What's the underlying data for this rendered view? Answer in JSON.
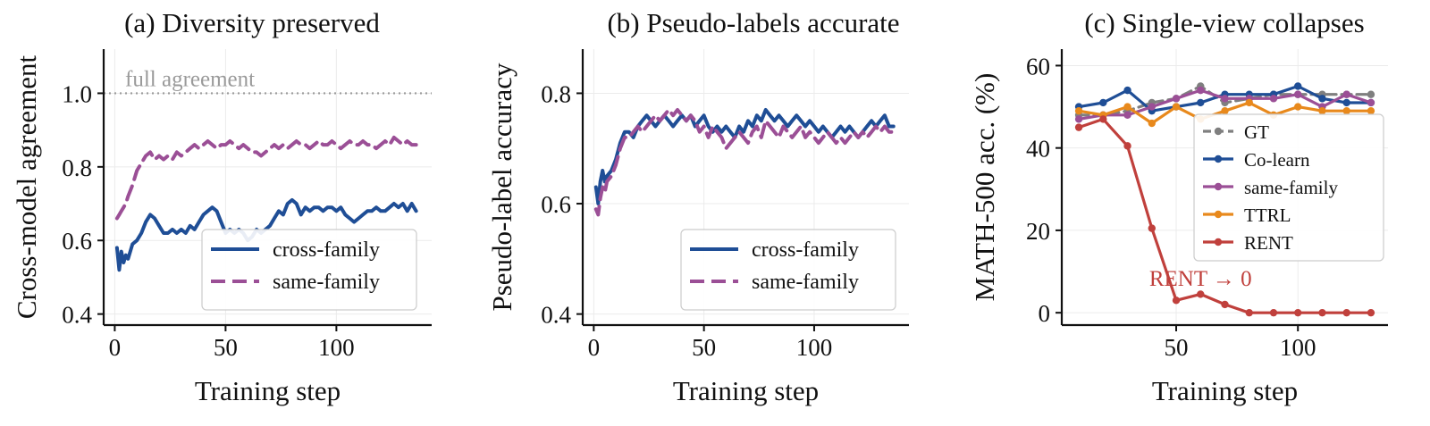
{
  "chart_data": [
    {
      "type": "line",
      "title": "(a) Diversity preserved",
      "xlabel": "Training step",
      "ylabel": "Cross-model agreement",
      "xlim": [
        -5,
        143
      ],
      "ylim": [
        0.37,
        1.12
      ],
      "xticks": [
        0,
        50,
        100
      ],
      "yticks": [
        0.4,
        0.6,
        0.8,
        1.0
      ],
      "ytick_labels": [
        "0.4",
        "0.6",
        "0.8",
        "1.0"
      ],
      "grid": true,
      "legend": "lower-right",
      "reference_line": {
        "y": 1.0,
        "label": "full agreement",
        "color": "#9a9a9a"
      },
      "series": [
        {
          "name": "cross-family",
          "color": "#1f4e96",
          "style": "solid",
          "x": [
            1,
            2,
            3,
            4,
            5,
            6,
            8,
            10,
            12,
            14,
            16,
            18,
            20,
            22,
            24,
            26,
            28,
            30,
            32,
            34,
            36,
            38,
            40,
            42,
            44,
            46,
            48,
            50,
            52,
            54,
            56,
            58,
            60,
            62,
            64,
            66,
            68,
            70,
            72,
            74,
            76,
            78,
            80,
            82,
            84,
            86,
            88,
            90,
            92,
            94,
            96,
            98,
            100,
            102,
            104,
            106,
            108,
            110,
            112,
            114,
            116,
            118,
            120,
            122,
            124,
            126,
            128,
            130,
            132,
            134,
            136
          ],
          "y": [
            0.58,
            0.52,
            0.57,
            0.54,
            0.56,
            0.55,
            0.59,
            0.6,
            0.62,
            0.65,
            0.67,
            0.66,
            0.64,
            0.62,
            0.62,
            0.63,
            0.62,
            0.63,
            0.62,
            0.64,
            0.63,
            0.65,
            0.67,
            0.68,
            0.69,
            0.68,
            0.65,
            0.62,
            0.63,
            0.62,
            0.63,
            0.62,
            0.6,
            0.61,
            0.63,
            0.62,
            0.63,
            0.64,
            0.66,
            0.68,
            0.67,
            0.7,
            0.71,
            0.7,
            0.67,
            0.69,
            0.68,
            0.69,
            0.69,
            0.68,
            0.69,
            0.69,
            0.68,
            0.69,
            0.67,
            0.66,
            0.65,
            0.66,
            0.67,
            0.68,
            0.68,
            0.69,
            0.68,
            0.68,
            0.69,
            0.7,
            0.69,
            0.7,
            0.68,
            0.7,
            0.68
          ]
        },
        {
          "name": "same-family",
          "color": "#9b4f96",
          "style": "dashed",
          "x": [
            1,
            2,
            3,
            4,
            5,
            6,
            8,
            10,
            12,
            14,
            16,
            18,
            20,
            22,
            24,
            26,
            28,
            30,
            32,
            34,
            36,
            38,
            40,
            42,
            44,
            46,
            48,
            50,
            52,
            54,
            56,
            58,
            60,
            62,
            64,
            66,
            68,
            70,
            72,
            74,
            76,
            78,
            80,
            82,
            84,
            86,
            88,
            90,
            92,
            94,
            96,
            98,
            100,
            102,
            104,
            106,
            108,
            110,
            112,
            114,
            116,
            118,
            120,
            122,
            124,
            126,
            128,
            130,
            132,
            134,
            136
          ],
          "y": [
            0.66,
            0.67,
            0.68,
            0.69,
            0.7,
            0.72,
            0.75,
            0.79,
            0.81,
            0.83,
            0.84,
            0.82,
            0.83,
            0.82,
            0.83,
            0.82,
            0.84,
            0.83,
            0.84,
            0.85,
            0.86,
            0.85,
            0.86,
            0.87,
            0.86,
            0.85,
            0.86,
            0.86,
            0.87,
            0.86,
            0.85,
            0.86,
            0.85,
            0.84,
            0.84,
            0.83,
            0.84,
            0.85,
            0.86,
            0.85,
            0.86,
            0.85,
            0.86,
            0.87,
            0.86,
            0.86,
            0.85,
            0.86,
            0.87,
            0.86,
            0.86,
            0.87,
            0.86,
            0.85,
            0.86,
            0.87,
            0.86,
            0.86,
            0.87,
            0.86,
            0.86,
            0.85,
            0.86,
            0.87,
            0.86,
            0.88,
            0.87,
            0.86,
            0.87,
            0.86,
            0.86
          ]
        }
      ]
    },
    {
      "type": "line",
      "title": "(b) Pseudo-labels accurate",
      "xlabel": "Training step",
      "ylabel": "Pseudo-label accuracy",
      "xlim": [
        -5,
        143
      ],
      "ylim": [
        0.38,
        0.88
      ],
      "xticks": [
        0,
        50,
        100
      ],
      "yticks": [
        0.4,
        0.6,
        0.8
      ],
      "ytick_labels": [
        "0.4",
        "0.6",
        "0.8"
      ],
      "grid": true,
      "legend": "lower-right",
      "series": [
        {
          "name": "cross-family",
          "color": "#1f4e96",
          "style": "solid",
          "x": [
            1,
            2,
            3,
            4,
            5,
            6,
            8,
            10,
            12,
            14,
            16,
            18,
            20,
            22,
            24,
            26,
            28,
            30,
            32,
            34,
            36,
            38,
            40,
            42,
            44,
            46,
            48,
            50,
            52,
            54,
            56,
            58,
            60,
            62,
            64,
            66,
            68,
            70,
            72,
            74,
            76,
            78,
            80,
            82,
            84,
            86,
            88,
            90,
            92,
            94,
            96,
            98,
            100,
            102,
            104,
            106,
            108,
            110,
            112,
            114,
            116,
            118,
            120,
            122,
            124,
            126,
            128,
            130,
            132,
            134,
            136
          ],
          "y": [
            0.63,
            0.6,
            0.64,
            0.66,
            0.64,
            0.65,
            0.66,
            0.68,
            0.71,
            0.73,
            0.73,
            0.72,
            0.74,
            0.75,
            0.76,
            0.75,
            0.74,
            0.75,
            0.76,
            0.75,
            0.74,
            0.75,
            0.76,
            0.75,
            0.76,
            0.74,
            0.75,
            0.76,
            0.74,
            0.73,
            0.74,
            0.73,
            0.74,
            0.73,
            0.72,
            0.74,
            0.73,
            0.75,
            0.74,
            0.76,
            0.75,
            0.77,
            0.76,
            0.75,
            0.76,
            0.75,
            0.74,
            0.75,
            0.76,
            0.75,
            0.74,
            0.75,
            0.74,
            0.73,
            0.74,
            0.73,
            0.72,
            0.73,
            0.74,
            0.73,
            0.74,
            0.73,
            0.72,
            0.73,
            0.74,
            0.75,
            0.74,
            0.75,
            0.76,
            0.74,
            0.74
          ]
        },
        {
          "name": "same-family",
          "color": "#9b4f96",
          "style": "dashed",
          "x": [
            1,
            2,
            3,
            4,
            5,
            6,
            8,
            10,
            12,
            14,
            16,
            18,
            20,
            22,
            24,
            26,
            28,
            30,
            32,
            34,
            36,
            38,
            40,
            42,
            44,
            46,
            48,
            50,
            52,
            54,
            56,
            58,
            60,
            62,
            64,
            66,
            68,
            70,
            72,
            74,
            76,
            78,
            80,
            82,
            84,
            86,
            88,
            90,
            92,
            94,
            96,
            98,
            100,
            102,
            104,
            106,
            108,
            110,
            112,
            114,
            116,
            118,
            120,
            122,
            124,
            126,
            128,
            130,
            132,
            134,
            136
          ],
          "y": [
            0.59,
            0.58,
            0.61,
            0.63,
            0.62,
            0.64,
            0.65,
            0.67,
            0.7,
            0.72,
            0.72,
            0.73,
            0.74,
            0.73,
            0.74,
            0.75,
            0.76,
            0.75,
            0.76,
            0.77,
            0.76,
            0.77,
            0.76,
            0.75,
            0.76,
            0.75,
            0.73,
            0.74,
            0.72,
            0.74,
            0.73,
            0.72,
            0.7,
            0.71,
            0.72,
            0.73,
            0.72,
            0.71,
            0.73,
            0.74,
            0.72,
            0.75,
            0.74,
            0.73,
            0.72,
            0.74,
            0.73,
            0.72,
            0.73,
            0.74,
            0.72,
            0.73,
            0.72,
            0.71,
            0.72,
            0.73,
            0.72,
            0.71,
            0.72,
            0.71,
            0.72,
            0.73,
            0.72,
            0.73,
            0.72,
            0.73,
            0.74,
            0.73,
            0.74,
            0.73,
            0.73
          ]
        }
      ]
    },
    {
      "type": "line",
      "title": "(c) Single-view collapses",
      "xlabel": "Training step",
      "ylabel": "MATH-500 acc. (%)",
      "xlim": [
        3,
        137
      ],
      "ylim": [
        -3,
        64
      ],
      "xticks": [
        50,
        100
      ],
      "yticks": [
        0,
        20,
        40,
        60
      ],
      "ytick_labels": [
        "0",
        "20",
        "40",
        "60"
      ],
      "grid": true,
      "legend": "right",
      "annotation": {
        "text": "RENT → 0",
        "x": 60,
        "y": 6.5,
        "color": "#c0403c"
      },
      "series": [
        {
          "name": "GT",
          "color": "#7f7f7f",
          "style": "dashed",
          "markers": true,
          "x": [
            10,
            20,
            30,
            40,
            50,
            60,
            70,
            80,
            90,
            100,
            110,
            120,
            130
          ],
          "y": [
            48,
            48,
            49,
            51,
            52,
            55,
            51,
            52,
            53,
            53,
            53,
            53,
            53
          ]
        },
        {
          "name": "Co-learn",
          "color": "#1f4e96",
          "style": "solid",
          "markers": true,
          "x": [
            10,
            20,
            30,
            40,
            50,
            60,
            70,
            80,
            90,
            100,
            110,
            120,
            130
          ],
          "y": [
            50,
            51,
            54,
            49,
            50,
            51,
            53,
            53,
            53,
            55,
            52,
            51,
            51
          ]
        },
        {
          "name": "same-family",
          "color": "#9b4f96",
          "style": "solid",
          "markers": true,
          "x": [
            10,
            20,
            30,
            40,
            50,
            60,
            70,
            80,
            90,
            100,
            110,
            120,
            130
          ],
          "y": [
            47,
            48,
            48,
            50,
            52,
            54,
            52,
            52,
            52,
            53,
            50,
            53,
            51
          ]
        },
        {
          "name": "TTRL",
          "color": "#e8891c",
          "style": "solid",
          "markers": true,
          "x": [
            10,
            20,
            30,
            40,
            50,
            60,
            70,
            80,
            90,
            100,
            110,
            120,
            130
          ],
          "y": [
            49,
            48,
            50,
            46,
            50,
            47,
            49,
            51,
            48,
            50,
            49,
            49,
            49
          ]
        },
        {
          "name": "RENT",
          "color": "#c0403c",
          "style": "solid",
          "markers": true,
          "x": [
            10,
            20,
            30,
            40,
            50,
            60,
            70,
            80,
            90,
            100,
            110,
            120,
            130
          ],
          "y": [
            45,
            47,
            40.5,
            20.5,
            3,
            4.5,
            2,
            0,
            0,
            0,
            0,
            0,
            0
          ]
        }
      ]
    }
  ]
}
